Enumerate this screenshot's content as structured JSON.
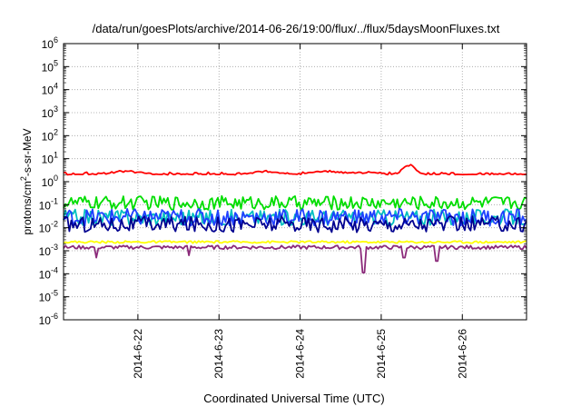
{
  "chart_data": {
    "type": "line",
    "title": "/data/run/goesPlots/archive/2014-06-26/19:00/flux/../flux/5daysMoonFluxes.txt",
    "xlabel": "Coordinated Universal Time (UTC)",
    "ylabel": {
      "prefix": "protons/cm",
      "sup": "2",
      "suffix": "-s-sr-MeV"
    },
    "yscale": "log",
    "ylim": [
      1e-06,
      1000000.0
    ],
    "xlim": [
      "2014-06-21 02:00",
      "2014-06-26 19:00"
    ],
    "grid": true,
    "ytick_labels": [
      {
        "base": "10",
        "exp": "-6"
      },
      {
        "base": "10",
        "exp": "-5"
      },
      {
        "base": "10",
        "exp": "-4"
      },
      {
        "base": "10",
        "exp": "-3"
      },
      {
        "base": "10",
        "exp": "-2"
      },
      {
        "base": "10",
        "exp": "-1"
      },
      {
        "base": "10",
        "exp": "0"
      },
      {
        "base": "10",
        "exp": "1"
      },
      {
        "base": "10",
        "exp": "2"
      },
      {
        "base": "10",
        "exp": "3"
      },
      {
        "base": "10",
        "exp": "4"
      },
      {
        "base": "10",
        "exp": "5"
      },
      {
        "base": "10",
        "exp": "6"
      }
    ],
    "xtick_labels": [
      "2014-6-22",
      "2014-6-23",
      "2014-6-24",
      "2014-6-25",
      "2014-6-26"
    ],
    "series": [
      {
        "color": "#ff0000",
        "level": 0.28,
        "noise": 0.14,
        "bumps": [
          [
            0.18,
            0.1,
            0.25
          ],
          [
            0.52,
            0.2,
            0.3
          ],
          [
            0.75,
            0.27,
            0.45
          ],
          [
            0.95,
            0.2,
            0.38
          ],
          [
            1.4,
            0.05,
            0.35
          ],
          [
            2.52,
            0.25,
            0.45
          ],
          [
            3.25,
            0.3,
            0.45
          ],
          [
            3.75,
            0.28,
            0.4
          ],
          [
            4.26,
            0.12,
            0.72
          ],
          [
            5.45,
            0.1,
            0.35
          ]
        ]
      },
      {
        "color": "#00dd00",
        "level": -0.92,
        "noise": 0.3,
        "bumps": []
      },
      {
        "color": "#00c0c0",
        "level": -1.55,
        "noise": 0.35,
        "bumps": []
      },
      {
        "color": "#2040ff",
        "level": -1.55,
        "noise": 0.38,
        "bumps": []
      },
      {
        "color": "#000090",
        "level": -1.85,
        "noise": 0.35,
        "bumps": []
      },
      {
        "color": "#ffff00",
        "level": -2.62,
        "noise": 0.05,
        "bumps": []
      },
      {
        "color": "#8b2a7a",
        "level": -2.85,
        "noise": 0.08,
        "dips": [
          [
            0.4,
            -3.3
          ],
          [
            1.55,
            -3.2
          ],
          [
            3.7,
            -3.95
          ],
          [
            4.2,
            -3.3
          ],
          [
            4.6,
            -3.45
          ]
        ]
      }
    ]
  }
}
